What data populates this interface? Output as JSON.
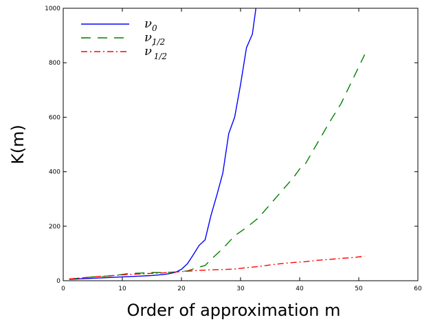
{
  "chart_data": {
    "type": "line",
    "xlabel": "Order of approximation m",
    "ylabel": "K(m)",
    "xlim": [
      0,
      60
    ],
    "ylim": [
      0,
      1000
    ],
    "xticks": [
      0,
      10,
      20,
      30,
      40,
      50,
      60
    ],
    "yticks": [
      0,
      200,
      400,
      600,
      800,
      1000
    ],
    "grid": false,
    "legend_position": "top-left",
    "series": [
      {
        "name": "ν0",
        "legend_main": "ν",
        "legend_sub": "0",
        "legend_prime": "",
        "color": "#0000ff",
        "style": "solid",
        "x": [
          1,
          2,
          3,
          4,
          5,
          6,
          7,
          8,
          9,
          10,
          11,
          12,
          13,
          14,
          15,
          16,
          17,
          18,
          19,
          20,
          21,
          22,
          23,
          24,
          25,
          26,
          27,
          28,
          29,
          30,
          31,
          32,
          32.6
        ],
        "y": [
          5,
          6,
          7,
          8,
          9,
          10,
          11,
          12,
          13,
          14,
          15,
          16,
          17,
          18,
          19,
          21,
          23,
          26,
          31,
          42,
          62,
          95,
          130,
          150,
          240,
          315,
          395,
          540,
          600,
          720,
          855,
          905,
          1000
        ]
      },
      {
        "name": "ν1/2",
        "legend_main": "ν",
        "legend_sub": "1/2",
        "legend_prime": "",
        "color": "#008000",
        "style": "dashed",
        "x": [
          1,
          3,
          5,
          7,
          9,
          11,
          13,
          15,
          17,
          19,
          21,
          23,
          24,
          25,
          27,
          29,
          31,
          33,
          35,
          37,
          39,
          40,
          41,
          43,
          45,
          47,
          49,
          51
        ],
        "y": [
          6,
          10,
          14,
          16,
          20,
          26,
          28,
          30,
          30,
          32,
          36,
          50,
          56,
          78,
          118,
          165,
          195,
          230,
          280,
          330,
          380,
          410,
          430,
          505,
          580,
          650,
          740,
          830
        ]
      },
      {
        "name": "ν'1/2",
        "legend_main": "ν",
        "legend_sub": "1/2",
        "legend_prime": "′",
        "color": "#ff0000",
        "style": "dashdot",
        "x": [
          1,
          3,
          5,
          7,
          9,
          11,
          13,
          15,
          17,
          19,
          21,
          23,
          25,
          27,
          29,
          31,
          33,
          35,
          37,
          39,
          41,
          43,
          45,
          47,
          49,
          51
        ],
        "y": [
          6,
          10,
          14,
          17,
          20,
          23,
          25,
          27,
          29,
          32,
          35,
          38,
          40,
          41,
          43,
          48,
          52,
          58,
          63,
          67,
          70,
          75,
          78,
          82,
          85,
          90
        ]
      }
    ]
  }
}
